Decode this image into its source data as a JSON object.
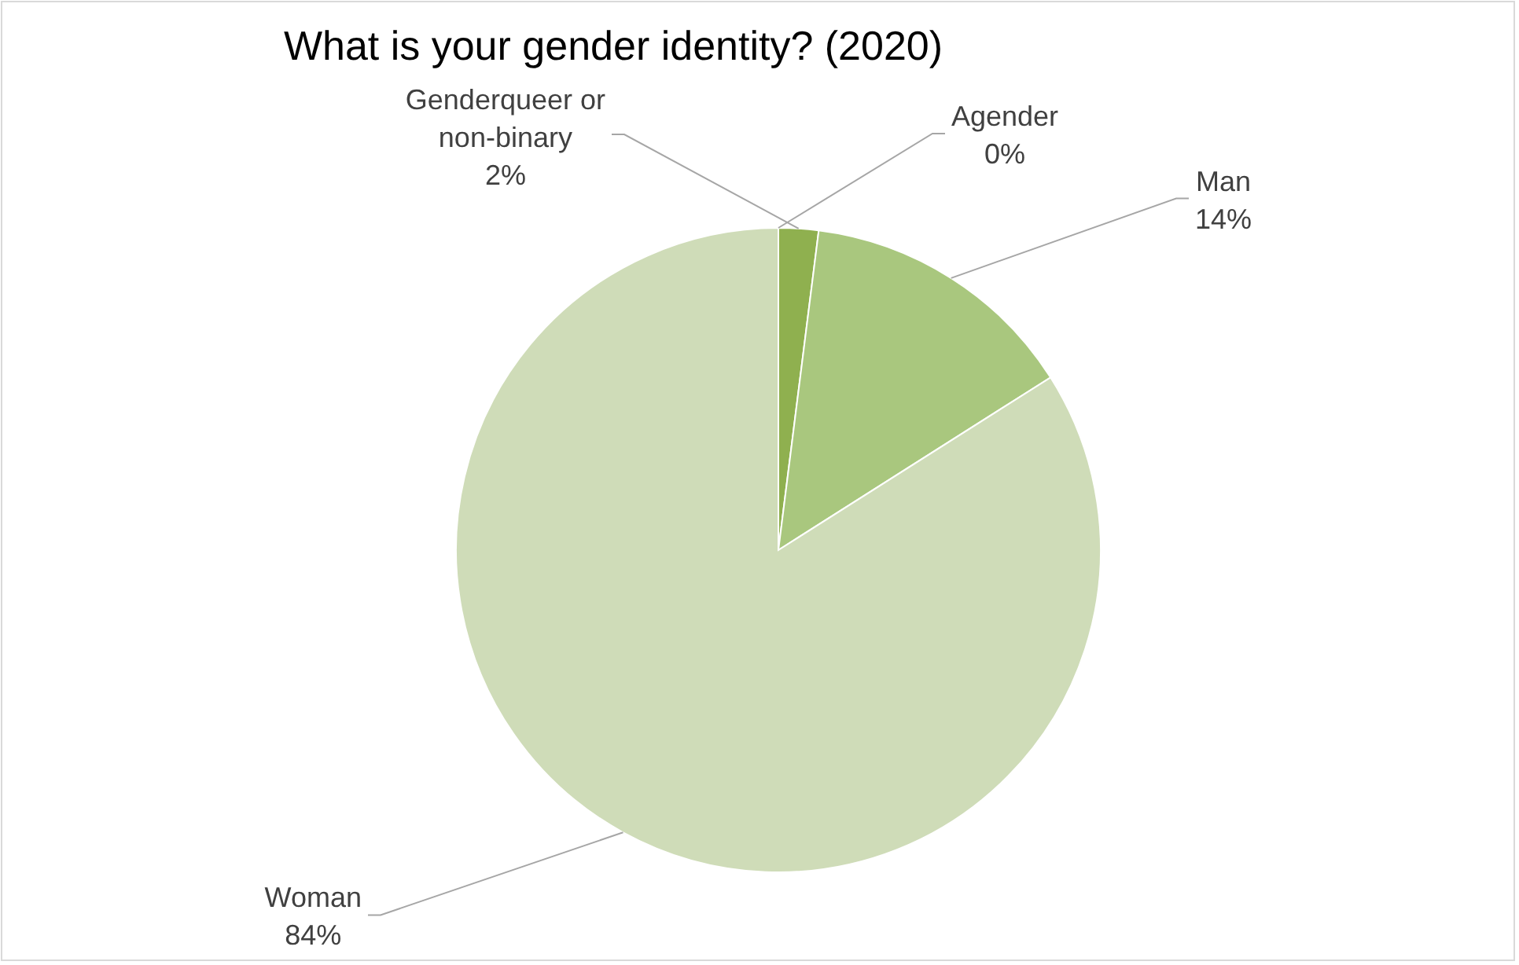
{
  "chart_data": {
    "type": "pie",
    "title": "What is your gender identity? (2020)",
    "categories": [
      "Agender",
      "Genderqueer or non-binary",
      "Man",
      "Woman"
    ],
    "values": [
      0,
      2,
      14,
      84
    ],
    "value_labels": [
      "0%",
      "2%",
      "14%",
      "84%"
    ],
    "colors": [
      "#6f9a3a",
      "#8fb04f",
      "#a9c77e",
      "#cfdcb8"
    ],
    "legend": false
  }
}
